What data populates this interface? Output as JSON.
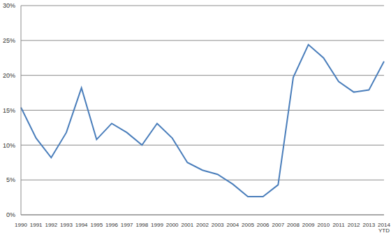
{
  "chart_data": {
    "type": "line",
    "categories": [
      "1990",
      "1991",
      "1992",
      "1993",
      "1994",
      "1995",
      "1996",
      "1997",
      "1998",
      "1999",
      "2000",
      "2001",
      "2002",
      "2003",
      "2004",
      "2005",
      "2006",
      "2007",
      "2008",
      "2009",
      "2010",
      "2011",
      "2012",
      "2013",
      "2014 YTD"
    ],
    "values": [
      15.4,
      11.0,
      8.2,
      11.8,
      18.2,
      10.8,
      13.1,
      11.8,
      10.0,
      13.1,
      11.0,
      7.5,
      6.4,
      5.8,
      4.4,
      2.6,
      2.6,
      4.3,
      19.7,
      24.4,
      22.5,
      19.1,
      17.6,
      17.9,
      22.0
    ],
    "color": "#4a7ebb",
    "ylim": [
      0,
      30
    ],
    "yticks": [
      {
        "value": 0,
        "label": "0%"
      },
      {
        "value": 5,
        "label": "5%"
      },
      {
        "value": 10,
        "label": "10%"
      },
      {
        "value": 15,
        "label": "15%"
      },
      {
        "value": 20,
        "label": "20%"
      },
      {
        "value": 25,
        "label": "25%"
      },
      {
        "value": 30,
        "label": "30%"
      }
    ],
    "grid": true
  }
}
